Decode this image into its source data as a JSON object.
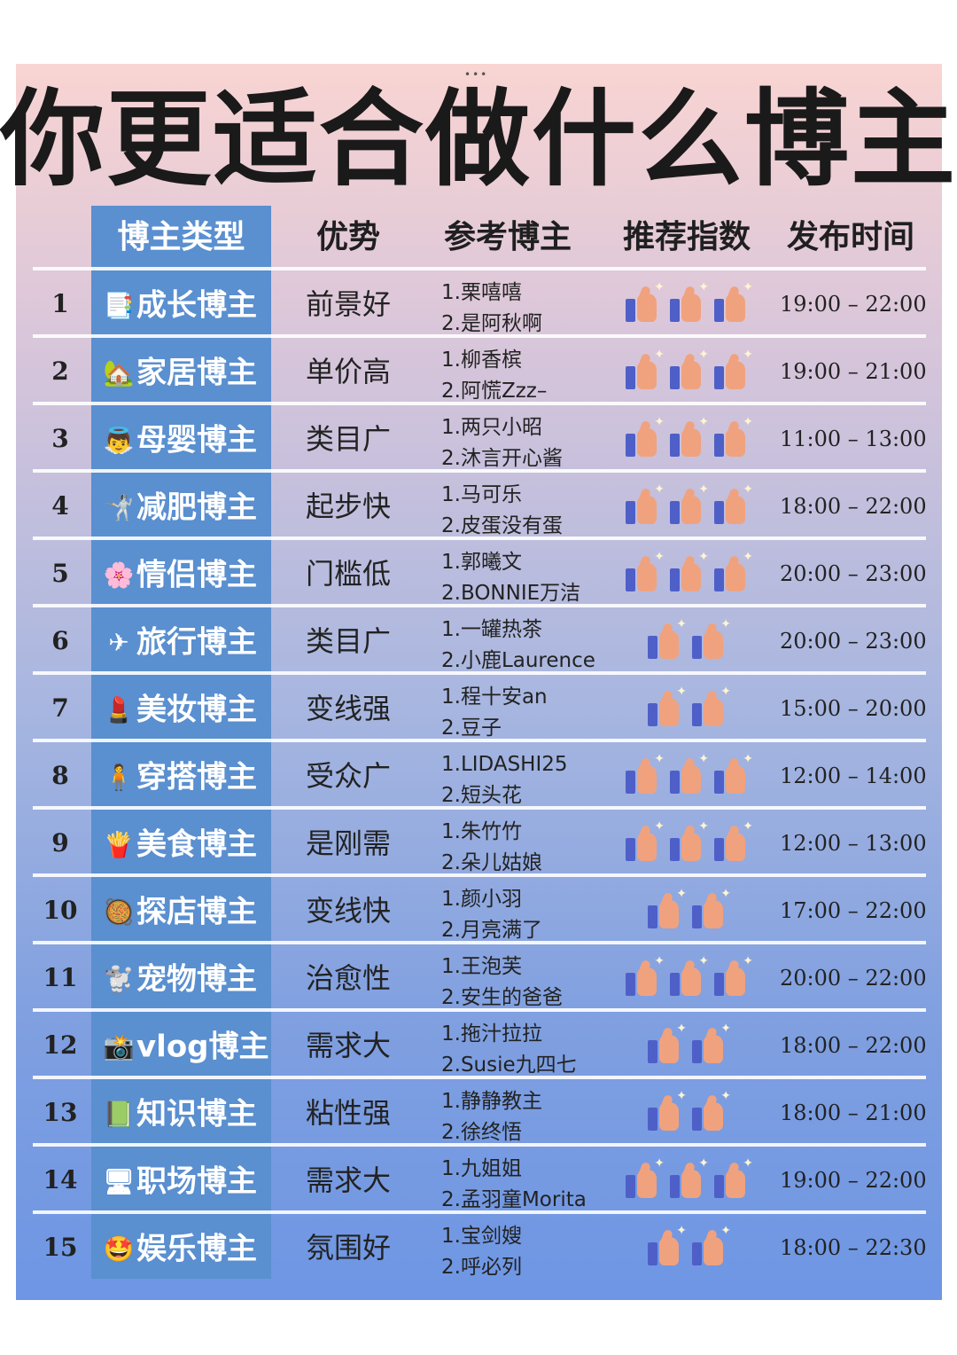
{
  "title": "你更适合做什么博主",
  "more_dots": "•••",
  "headers": {
    "type": "博主类型",
    "advantage": "优势",
    "reference": "参考博主",
    "recommend": "推荐指数",
    "time": "发布时间"
  },
  "rows": [
    {
      "num": "1",
      "icon": "📑",
      "icon_name": "page-icon",
      "type": "成长博主",
      "advantage": "前景好",
      "ref1": "1.栗嘻嘻",
      "ref2": "2.是阿秋啊",
      "rating": 3,
      "time": "19:00 – 22:00"
    },
    {
      "num": "2",
      "icon": "🏡",
      "icon_name": "house-icon",
      "type": "家居博主",
      "advantage": "单价高",
      "ref1": "1.柳香槟",
      "ref2": "2.阿慌Zzz–",
      "rating": 3,
      "time": "19:00 – 21:00"
    },
    {
      "num": "3",
      "icon": "👼",
      "icon_name": "baby-icon",
      "type": "母婴博主",
      "advantage": "类目广",
      "ref1": "1.两只小昭",
      "ref2": "2.沐言开心酱",
      "rating": 3,
      "time": "11:00 – 13:00"
    },
    {
      "num": "4",
      "icon": "🤺",
      "icon_name": "fencer-icon",
      "type": "减肥博主",
      "advantage": "起步快",
      "ref1": "1.马可乐",
      "ref2": "2.皮蛋没有蛋",
      "rating": 3,
      "time": "18:00 – 22:00"
    },
    {
      "num": "5",
      "icon": "🌸",
      "icon_name": "blossom-icon",
      "type": "情侣博主",
      "advantage": "门槛低",
      "ref1": "1.郭曦文",
      "ref2": "2.BONNIE万洁",
      "rating": 3,
      "time": "20:00 – 23:00"
    },
    {
      "num": "6",
      "icon": "✈",
      "icon_name": "airplane-icon",
      "type": "旅行博主",
      "advantage": "类目广",
      "ref1": "1.一罐热茶",
      "ref2": "2.小鹿Laurence",
      "rating": 2,
      "time": "20:00 – 23:00"
    },
    {
      "num": "7",
      "icon": "💄",
      "icon_name": "lipstick-icon",
      "type": "美妆博主",
      "advantage": "变线强",
      "ref1": "1.程十安an",
      "ref2": "2.豆子",
      "rating": 2,
      "time": "15:00 – 20:00"
    },
    {
      "num": "8",
      "icon": "🧍",
      "icon_name": "person-icon",
      "type": "穿搭博主",
      "advantage": "受众广",
      "ref1": "1.LIDASHI25",
      "ref2": "2.短头花",
      "rating": 3,
      "time": "12:00 – 14:00"
    },
    {
      "num": "9",
      "icon": "🍟",
      "icon_name": "fries-icon",
      "type": "美食博主",
      "advantage": "是刚需",
      "ref1": "1.朱竹竹",
      "ref2": "2.朵儿姑娘",
      "rating": 3,
      "time": "12:00 – 13:00"
    },
    {
      "num": "10",
      "icon": "🥘",
      "icon_name": "pan-food-icon",
      "type": "探店博主",
      "advantage": "变线快",
      "ref1": "1.颜小羽",
      "ref2": "2.月亮满了",
      "rating": 2,
      "time": "17:00 – 22:00"
    },
    {
      "num": "11",
      "icon": "🐩",
      "icon_name": "poodle-icon",
      "type": "宠物博主",
      "advantage": "治愈性",
      "ref1": "1.王泡芙",
      "ref2": "2.安生的爸爸",
      "rating": 3,
      "time": "20:00 – 22:00"
    },
    {
      "num": "12",
      "icon": "📸",
      "icon_name": "camera-icon",
      "type": "vlog博主",
      "advantage": "需求大",
      "ref1": "1.拖汁拉拉",
      "ref2": "2.Susie九四七",
      "rating": 2,
      "time": "18:00 – 22:00"
    },
    {
      "num": "13",
      "icon": "📗",
      "icon_name": "green-book-icon",
      "type": "知识博主",
      "advantage": "粘性强",
      "ref1": "1.静静教主",
      "ref2": "2.徐终悟",
      "rating": 2,
      "time": "18:00 – 21:00"
    },
    {
      "num": "14",
      "icon": "🖥",
      "icon_name": "monitor-icon",
      "type": "职场博主",
      "advantage": "需求大",
      "ref1": "1.九姐姐",
      "ref2": "2.孟羽童Morita",
      "rating": 3,
      "time": "19:00 – 22:00"
    },
    {
      "num": "15",
      "icon": "🤩",
      "icon_name": "star-eyes-icon",
      "type": "娱乐博主",
      "advantage": "氛围好",
      "ref1": "1.宝剑嫂",
      "ref2": "2.呼必列",
      "rating": 2,
      "time": "18:00 – 22:30"
    }
  ]
}
